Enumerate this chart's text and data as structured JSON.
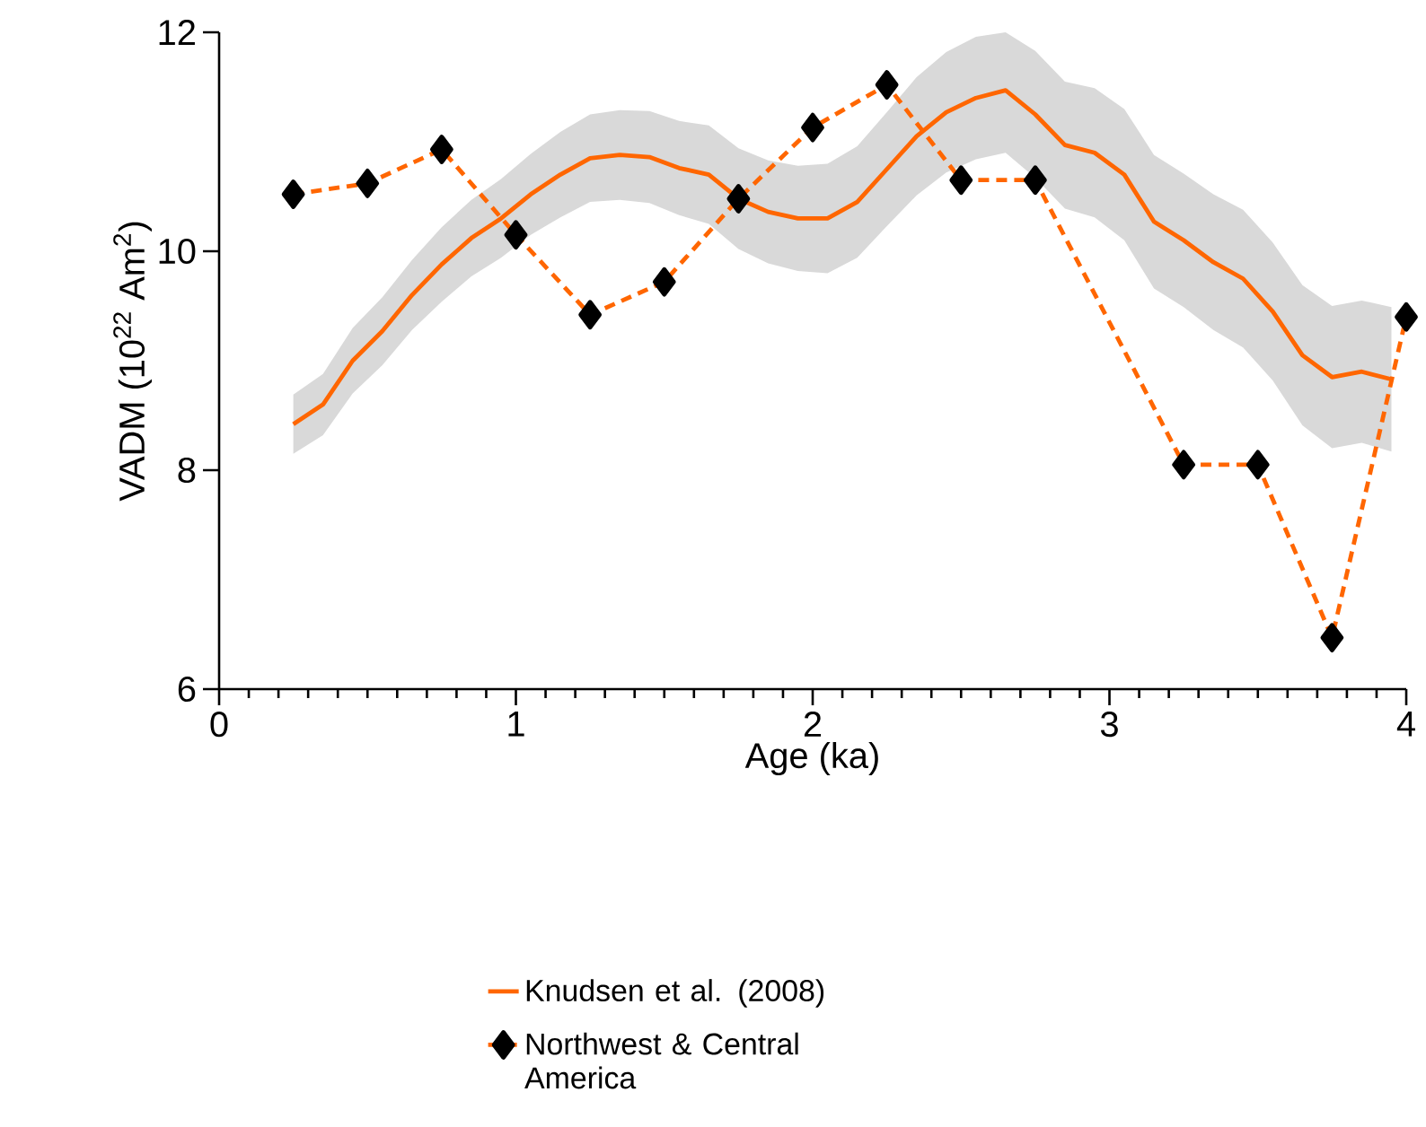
{
  "chart_data": {
    "type": "line",
    "xlabel": "Age (ka)",
    "ylabel": "VADM (10$^{22}$ Am$^{2}$)",
    "xlim": [
      0,
      4
    ],
    "xticks": [
      0,
      1,
      2,
      3,
      4
    ],
    "ylim": [
      6,
      12
    ],
    "yticks": [
      6,
      8,
      10,
      12
    ],
    "grid": false,
    "legend": "bottom",
    "series": [
      {
        "name": "Knudsen et al. (2008)",
        "color": "#ff6600",
        "line_style": "solid",
        "marker": "none",
        "x": [
          0.25,
          0.35,
          0.45,
          0.55,
          0.65,
          0.75,
          0.85,
          0.95,
          1.05,
          1.15,
          1.25,
          1.35,
          1.45,
          1.55,
          1.65,
          1.75,
          1.85,
          1.95,
          2.05,
          2.15,
          2.25,
          2.35,
          2.45,
          2.55,
          2.65,
          2.75,
          2.85,
          2.95,
          3.05,
          3.15,
          3.25,
          3.35,
          3.45,
          3.55,
          3.65,
          3.75,
          3.85,
          3.95
        ],
        "values": [
          8.42,
          8.6,
          9.0,
          9.27,
          9.6,
          9.88,
          10.12,
          10.3,
          10.52,
          10.7,
          10.85,
          10.88,
          10.86,
          10.76,
          10.7,
          10.48,
          10.36,
          10.3,
          10.3,
          10.45,
          10.75,
          11.05,
          11.27,
          11.4,
          11.47,
          11.25,
          10.97,
          10.9,
          10.7,
          10.27,
          10.1,
          9.9,
          9.75,
          9.45,
          9.05,
          8.85,
          8.9,
          8.83
        ],
        "upper": [
          8.69,
          8.88,
          9.3,
          9.58,
          9.92,
          10.22,
          10.47,
          10.66,
          10.89,
          11.09,
          11.25,
          11.29,
          11.28,
          11.19,
          11.15,
          10.94,
          10.83,
          10.78,
          10.8,
          10.96,
          11.27,
          11.59,
          11.82,
          11.96,
          12.0,
          11.83,
          11.55,
          11.49,
          11.3,
          10.88,
          10.71,
          10.52,
          10.38,
          10.08,
          9.69,
          9.5,
          9.55,
          9.49
        ],
        "lower": [
          8.15,
          8.32,
          8.7,
          8.96,
          9.28,
          9.54,
          9.77,
          9.94,
          10.15,
          10.31,
          10.45,
          10.47,
          10.44,
          10.33,
          10.25,
          10.02,
          9.89,
          9.82,
          9.8,
          9.94,
          10.23,
          10.51,
          10.72,
          10.84,
          10.9,
          10.67,
          10.39,
          10.31,
          10.1,
          9.66,
          9.49,
          9.28,
          9.12,
          8.82,
          8.41,
          8.2,
          8.25,
          8.17
        ]
      },
      {
        "name": "Northwest & Central America",
        "color": "#ff6600",
        "line_style": "dashed",
        "marker": "diamond",
        "x": [
          0.25,
          0.5,
          0.75,
          1.0,
          1.25,
          1.5,
          1.75,
          2.0,
          2.25,
          2.5,
          2.75,
          3.25,
          3.5,
          3.75,
          4.0
        ],
        "values": [
          10.52,
          10.62,
          10.93,
          10.15,
          9.42,
          9.72,
          10.48,
          11.13,
          11.52,
          10.65,
          10.65,
          8.05,
          8.05,
          6.47,
          9.4
        ]
      }
    ]
  }
}
